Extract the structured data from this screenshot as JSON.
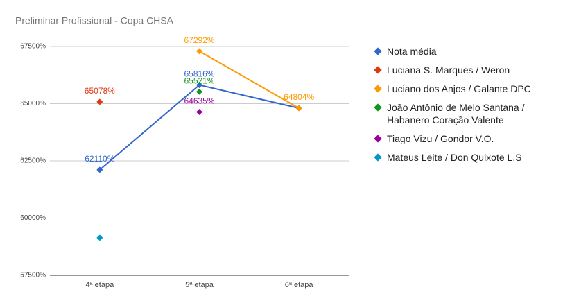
{
  "chart_data": {
    "type": "line",
    "title": "Preliminar Profissional - Copa CHSA",
    "categories": [
      "4ª etapa",
      "5ª etapa",
      "6ª etapa"
    ],
    "series": [
      {
        "name": "Nota média",
        "color": "#3366cc",
        "values": [
          62110,
          65816,
          64804
        ],
        "value_labels": [
          "62110%",
          "65816%",
          null
        ]
      },
      {
        "name": "Luciana S. Marques / Weron",
        "color": "#dc3912",
        "values": [
          65078,
          null,
          null
        ],
        "value_labels": [
          "65078%",
          null,
          null
        ]
      },
      {
        "name": "Luciano dos Anjos / Galante DPC",
        "color": "#ff9900",
        "values": [
          null,
          67292,
          64804
        ],
        "value_labels": [
          null,
          "67292%",
          "64804%"
        ]
      },
      {
        "name": "João Antônio de Melo Santana / Habanero Coração Valente",
        "color": "#109618",
        "values": [
          null,
          65521,
          null
        ],
        "value_labels": [
          null,
          "65521%",
          null
        ]
      },
      {
        "name": "Tiago Vizu / Gondor V.O.",
        "color": "#990099",
        "values": [
          null,
          64635,
          null
        ],
        "value_labels": [
          null,
          "64635%",
          null
        ]
      },
      {
        "name": "Mateus Leite / Don Quixote L.S",
        "color": "#0099c6",
        "values": [
          59140,
          null,
          null
        ],
        "value_labels": [
          null,
          null,
          null
        ]
      }
    ],
    "ylim": [
      57500,
      67500
    ],
    "yticks": [
      {
        "value": 57500,
        "label": "57500%"
      },
      {
        "value": 60000,
        "label": "60000%"
      },
      {
        "value": 62500,
        "label": "62500%"
      },
      {
        "value": 65000,
        "label": "65000%"
      },
      {
        "value": 67500,
        "label": "67500%"
      }
    ],
    "grid": true,
    "legend": "right"
  }
}
